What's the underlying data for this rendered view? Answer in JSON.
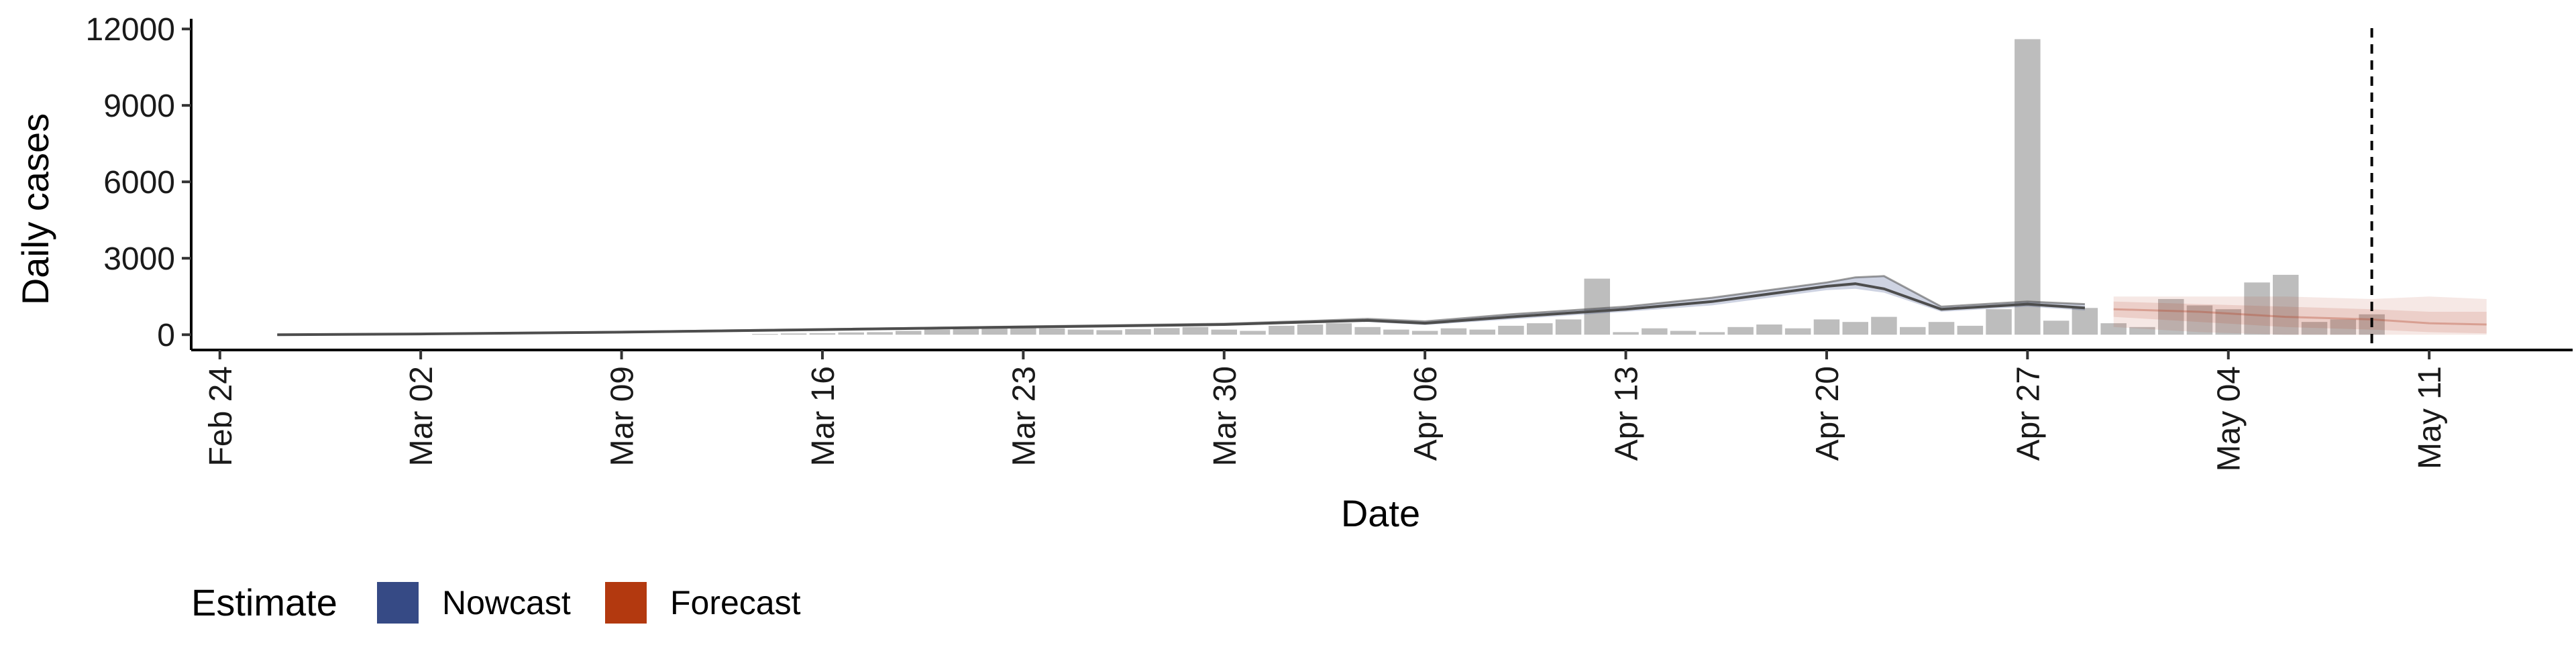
{
  "chart_data": {
    "type": "bar",
    "title": "",
    "xlabel": "Date",
    "ylabel": "Daily cases",
    "x_type": "date",
    "xlim": [
      "2020-02-23",
      "2020-05-16"
    ],
    "ylim": [
      -600,
      12400
    ],
    "y_ticks": [
      0,
      3000,
      6000,
      9000,
      12000
    ],
    "y_tick_labels": [
      "0",
      "3000",
      "6000",
      "9000",
      "12000"
    ],
    "x_ticks": [
      "2020-02-24",
      "2020-03-02",
      "2020-03-09",
      "2020-03-16",
      "2020-03-23",
      "2020-03-30",
      "2020-04-06",
      "2020-04-13",
      "2020-04-20",
      "2020-04-27",
      "2020-05-04",
      "2020-05-11"
    ],
    "x_tick_labels": [
      "Feb 24",
      "Mar 02",
      "Mar 09",
      "Mar 16",
      "Mar 23",
      "Mar 30",
      "Apr 06",
      "Apr 13",
      "Apr 20",
      "Apr 27",
      "May 04",
      "May 11"
    ],
    "grid": false,
    "legend_position": "bottom-left",
    "reference_line": {
      "date": "2020-05-09",
      "style": "dashed"
    },
    "colors": {
      "bars": "#bdbdbd",
      "nowcast": "#3b4f8c",
      "forecast": "#b5452a",
      "median_line": "#4d4d4d",
      "axis": "#000000"
    },
    "legend": {
      "title": "Estimate",
      "items": [
        {
          "label": "Nowcast",
          "color": "#364a85"
        },
        {
          "label": "Forecast",
          "color": "#b3390f"
        }
      ]
    },
    "reported_cases": {
      "dates": [
        "2020-03-14",
        "2020-03-15",
        "2020-03-16",
        "2020-03-17",
        "2020-03-18",
        "2020-03-19",
        "2020-03-20",
        "2020-03-21",
        "2020-03-22",
        "2020-03-23",
        "2020-03-24",
        "2020-03-25",
        "2020-03-26",
        "2020-03-27",
        "2020-03-28",
        "2020-03-29",
        "2020-03-30",
        "2020-03-31",
        "2020-04-01",
        "2020-04-02",
        "2020-04-03",
        "2020-04-04",
        "2020-04-05",
        "2020-04-06",
        "2020-04-07",
        "2020-04-08",
        "2020-04-09",
        "2020-04-10",
        "2020-04-11",
        "2020-04-12",
        "2020-04-13",
        "2020-04-14",
        "2020-04-15",
        "2020-04-16",
        "2020-04-17",
        "2020-04-18",
        "2020-04-19",
        "2020-04-20",
        "2020-04-21",
        "2020-04-22",
        "2020-04-23",
        "2020-04-24",
        "2020-04-25",
        "2020-04-26",
        "2020-04-27",
        "2020-04-28",
        "2020-04-29",
        "2020-04-30",
        "2020-05-01",
        "2020-05-02",
        "2020-05-03",
        "2020-05-04",
        "2020-05-05",
        "2020-05-06",
        "2020-05-07",
        "2020-05-08",
        "2020-05-09"
      ],
      "values": [
        30,
        50,
        60,
        90,
        100,
        150,
        200,
        250,
        280,
        300,
        250,
        200,
        180,
        220,
        260,
        300,
        200,
        150,
        350,
        400,
        450,
        300,
        200,
        150,
        250,
        200,
        350,
        450,
        600,
        2200,
        100,
        250,
        150,
        100,
        300,
        400,
        250,
        600,
        500,
        700,
        300,
        500,
        350,
        1000,
        11600,
        550,
        1050,
        450,
        300,
        1400,
        1150,
        1000,
        2050,
        2350,
        500,
        600,
        800
      ]
    },
    "nowcast": {
      "dates": [
        "2020-02-26",
        "2020-03-02",
        "2020-03-09",
        "2020-03-16",
        "2020-03-23",
        "2020-03-30",
        "2020-04-02",
        "2020-04-04",
        "2020-04-06",
        "2020-04-09",
        "2020-04-13",
        "2020-04-16",
        "2020-04-20",
        "2020-04-21",
        "2020-04-22",
        "2020-04-24",
        "2020-04-27",
        "2020-04-29"
      ],
      "median": [
        0,
        30,
        100,
        200,
        300,
        400,
        500,
        560,
        450,
        700,
        1000,
        1300,
        1900,
        2000,
        1800,
        1000,
        1200,
        1050
      ],
      "lower": [
        0,
        25,
        90,
        185,
        280,
        370,
        460,
        500,
        380,
        600,
        900,
        1150,
        1750,
        1800,
        1650,
        900,
        1100,
        950
      ],
      "upper": [
        0,
        35,
        110,
        215,
        320,
        430,
        540,
        620,
        520,
        800,
        1100,
        1450,
        2050,
        2250,
        2300,
        1100,
        1300,
        1200
      ]
    },
    "forecast": {
      "dates": [
        "2020-04-30",
        "2020-05-03",
        "2020-05-06",
        "2020-05-09",
        "2020-05-11",
        "2020-05-13"
      ],
      "median": [
        1000,
        900,
        700,
        600,
        450,
        400
      ],
      "inner_lower": [
        700,
        500,
        300,
        200,
        100,
        50
      ],
      "inner_upper": [
        1300,
        1200,
        1100,
        1000,
        900,
        900
      ],
      "outer_lower": [
        300,
        100,
        0,
        0,
        0,
        0
      ],
      "outer_upper": [
        1500,
        1500,
        1500,
        1400,
        1500,
        1400
      ]
    }
  }
}
